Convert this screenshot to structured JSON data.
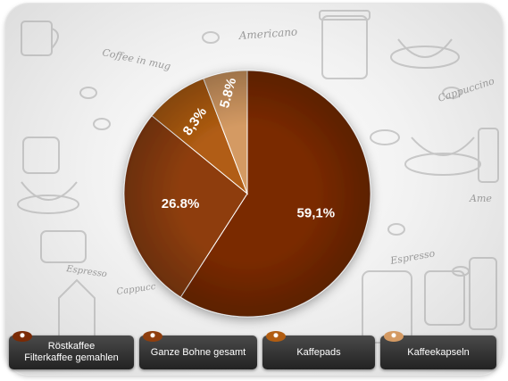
{
  "chart_data": {
    "type": "pie",
    "slices": [
      {
        "label": "Röstkaffee Filterkaffee gemahlen",
        "value": 59.1,
        "display": "59,1%",
        "color": "#7a2a05"
      },
      {
        "label": "Ganze Bohne gesamt",
        "value": 26.8,
        "display": "26.8%",
        "color": "#8e3e0e"
      },
      {
        "label": "Kaffepads",
        "value": 8.3,
        "display": "8,3%",
        "color": "#b15d12"
      },
      {
        "label": "Kaffeekapseln",
        "value": 5.8,
        "display": "5.8%",
        "color": "#d49a63"
      }
    ],
    "legend_placement": "bottom"
  },
  "legend": [
    {
      "line1": "Röstkaffee",
      "line2": "Filterkaffee gemahlen",
      "icon_color": "#7a2a05"
    },
    {
      "line1": "Ganze Bohne gesamt",
      "line2": "",
      "icon_color": "#8e3e0e"
    },
    {
      "line1": "Kaffepads",
      "line2": "",
      "icon_color": "#b15d12"
    },
    {
      "line1": "Kaffeekapseln",
      "line2": "",
      "icon_color": "#d49a63"
    }
  ],
  "background_words": [
    "Coffee in mug",
    "Americano",
    "Cappuccino",
    "Espresso",
    "Espresso",
    "Ame",
    "Cappucc"
  ]
}
